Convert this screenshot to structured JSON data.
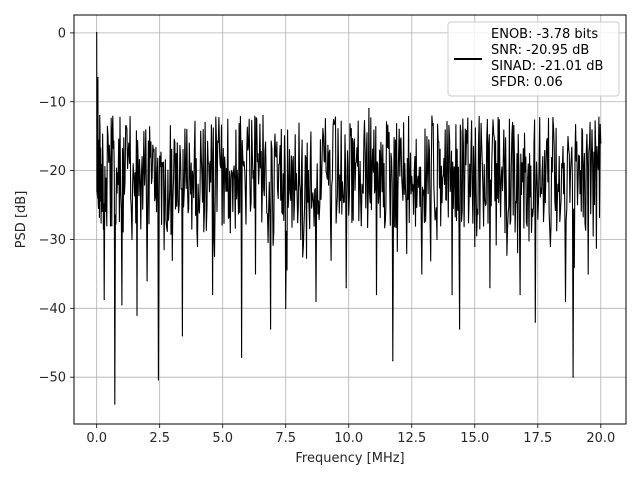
{
  "chart_data": {
    "type": "line",
    "xlabel": "Frequency [MHz]",
    "ylabel": "PSD [dB]",
    "xlim": [
      -0.9,
      21.0
    ],
    "ylim": [
      -56.8,
      2.6
    ],
    "xticks": [
      0.0,
      2.5,
      5.0,
      7.5,
      10.0,
      12.5,
      15.0,
      17.5,
      20.0
    ],
    "xtick_labels": [
      "0.0",
      "2.5",
      "5.0",
      "7.5",
      "10.0",
      "12.5",
      "15.0",
      "17.5",
      "20.0"
    ],
    "yticks": [
      0,
      -10,
      -20,
      -30,
      -40,
      -50
    ],
    "ytick_labels": [
      "0",
      "−10",
      "−20",
      "−30",
      "−40",
      "−50"
    ],
    "grid": true,
    "legend_position": "upper-right",
    "legend_entries": [
      "ENOB: -3.78 bits",
      "SNR: -20.95 dB",
      "SINAD: -21.01 dB",
      "SFDR: 0.06"
    ],
    "series": [
      {
        "color": "#000000",
        "x": [
          0.0,
          0.05,
          0.12,
          0.2,
          0.3,
          0.45,
          0.6,
          0.72,
          0.85,
          1.0,
          1.2,
          1.4,
          1.6,
          1.8,
          2.0,
          2.2,
          2.45,
          2.7,
          3.0,
          3.2,
          3.4,
          3.7,
          4.0,
          4.3,
          4.6,
          5.0,
          5.3,
          5.6,
          5.75,
          6.0,
          6.3,
          6.6,
          6.9,
          7.2,
          7.5,
          7.8,
          8.1,
          8.4,
          8.7,
          9.0,
          9.3,
          9.6,
          9.9,
          10.2,
          10.5,
          10.8,
          11.1,
          11.4,
          11.75,
          12.0,
          12.3,
          12.6,
          12.9,
          13.2,
          13.5,
          13.8,
          14.1,
          14.4,
          14.7,
          15.0,
          15.3,
          15.6,
          15.9,
          16.2,
          16.5,
          16.8,
          17.1,
          17.4,
          17.7,
          18.0,
          18.3,
          18.6,
          18.9,
          19.2,
          19.5,
          19.8,
          20.0
        ],
        "y": [
          0.06,
          -6.5,
          -12.0,
          -23.0,
          -38.7,
          -15.0,
          -28.0,
          -53.9,
          -22.0,
          -39.5,
          -14.0,
          -30.0,
          -41.0,
          -18.0,
          -36.0,
          -21.0,
          -50.4,
          -24.0,
          -33.0,
          -16.0,
          -44.0,
          -20.0,
          -31.0,
          -13.0,
          -38.0,
          -19.0,
          -29.0,
          -22.0,
          -47.1,
          -17.0,
          -35.0,
          -12.0,
          -43.0,
          -24.0,
          -40.0,
          -18.0,
          -30.0,
          -20.0,
          -39.0,
          -15.0,
          -33.0,
          -21.0,
          -37.0,
          -16.0,
          -28.0,
          -11.0,
          -38.0,
          -19.0,
          -47.6,
          -14.0,
          -32.0,
          -20.0,
          -35.0,
          -17.0,
          -30.0,
          -22.0,
          -38.0,
          -43.0,
          -16.0,
          -31.0,
          -19.0,
          -37.0,
          -24.0,
          -29.0,
          -13.0,
          -38.0,
          -21.0,
          -42.0,
          -18.0,
          -31.0,
          -22.0,
          -39.0,
          -50.0,
          -20.0,
          -35.0,
          -17.0,
          -16.0
        ],
        "noise_band": {
          "top": -12.0,
          "bottom": -29.0
        }
      }
    ]
  }
}
